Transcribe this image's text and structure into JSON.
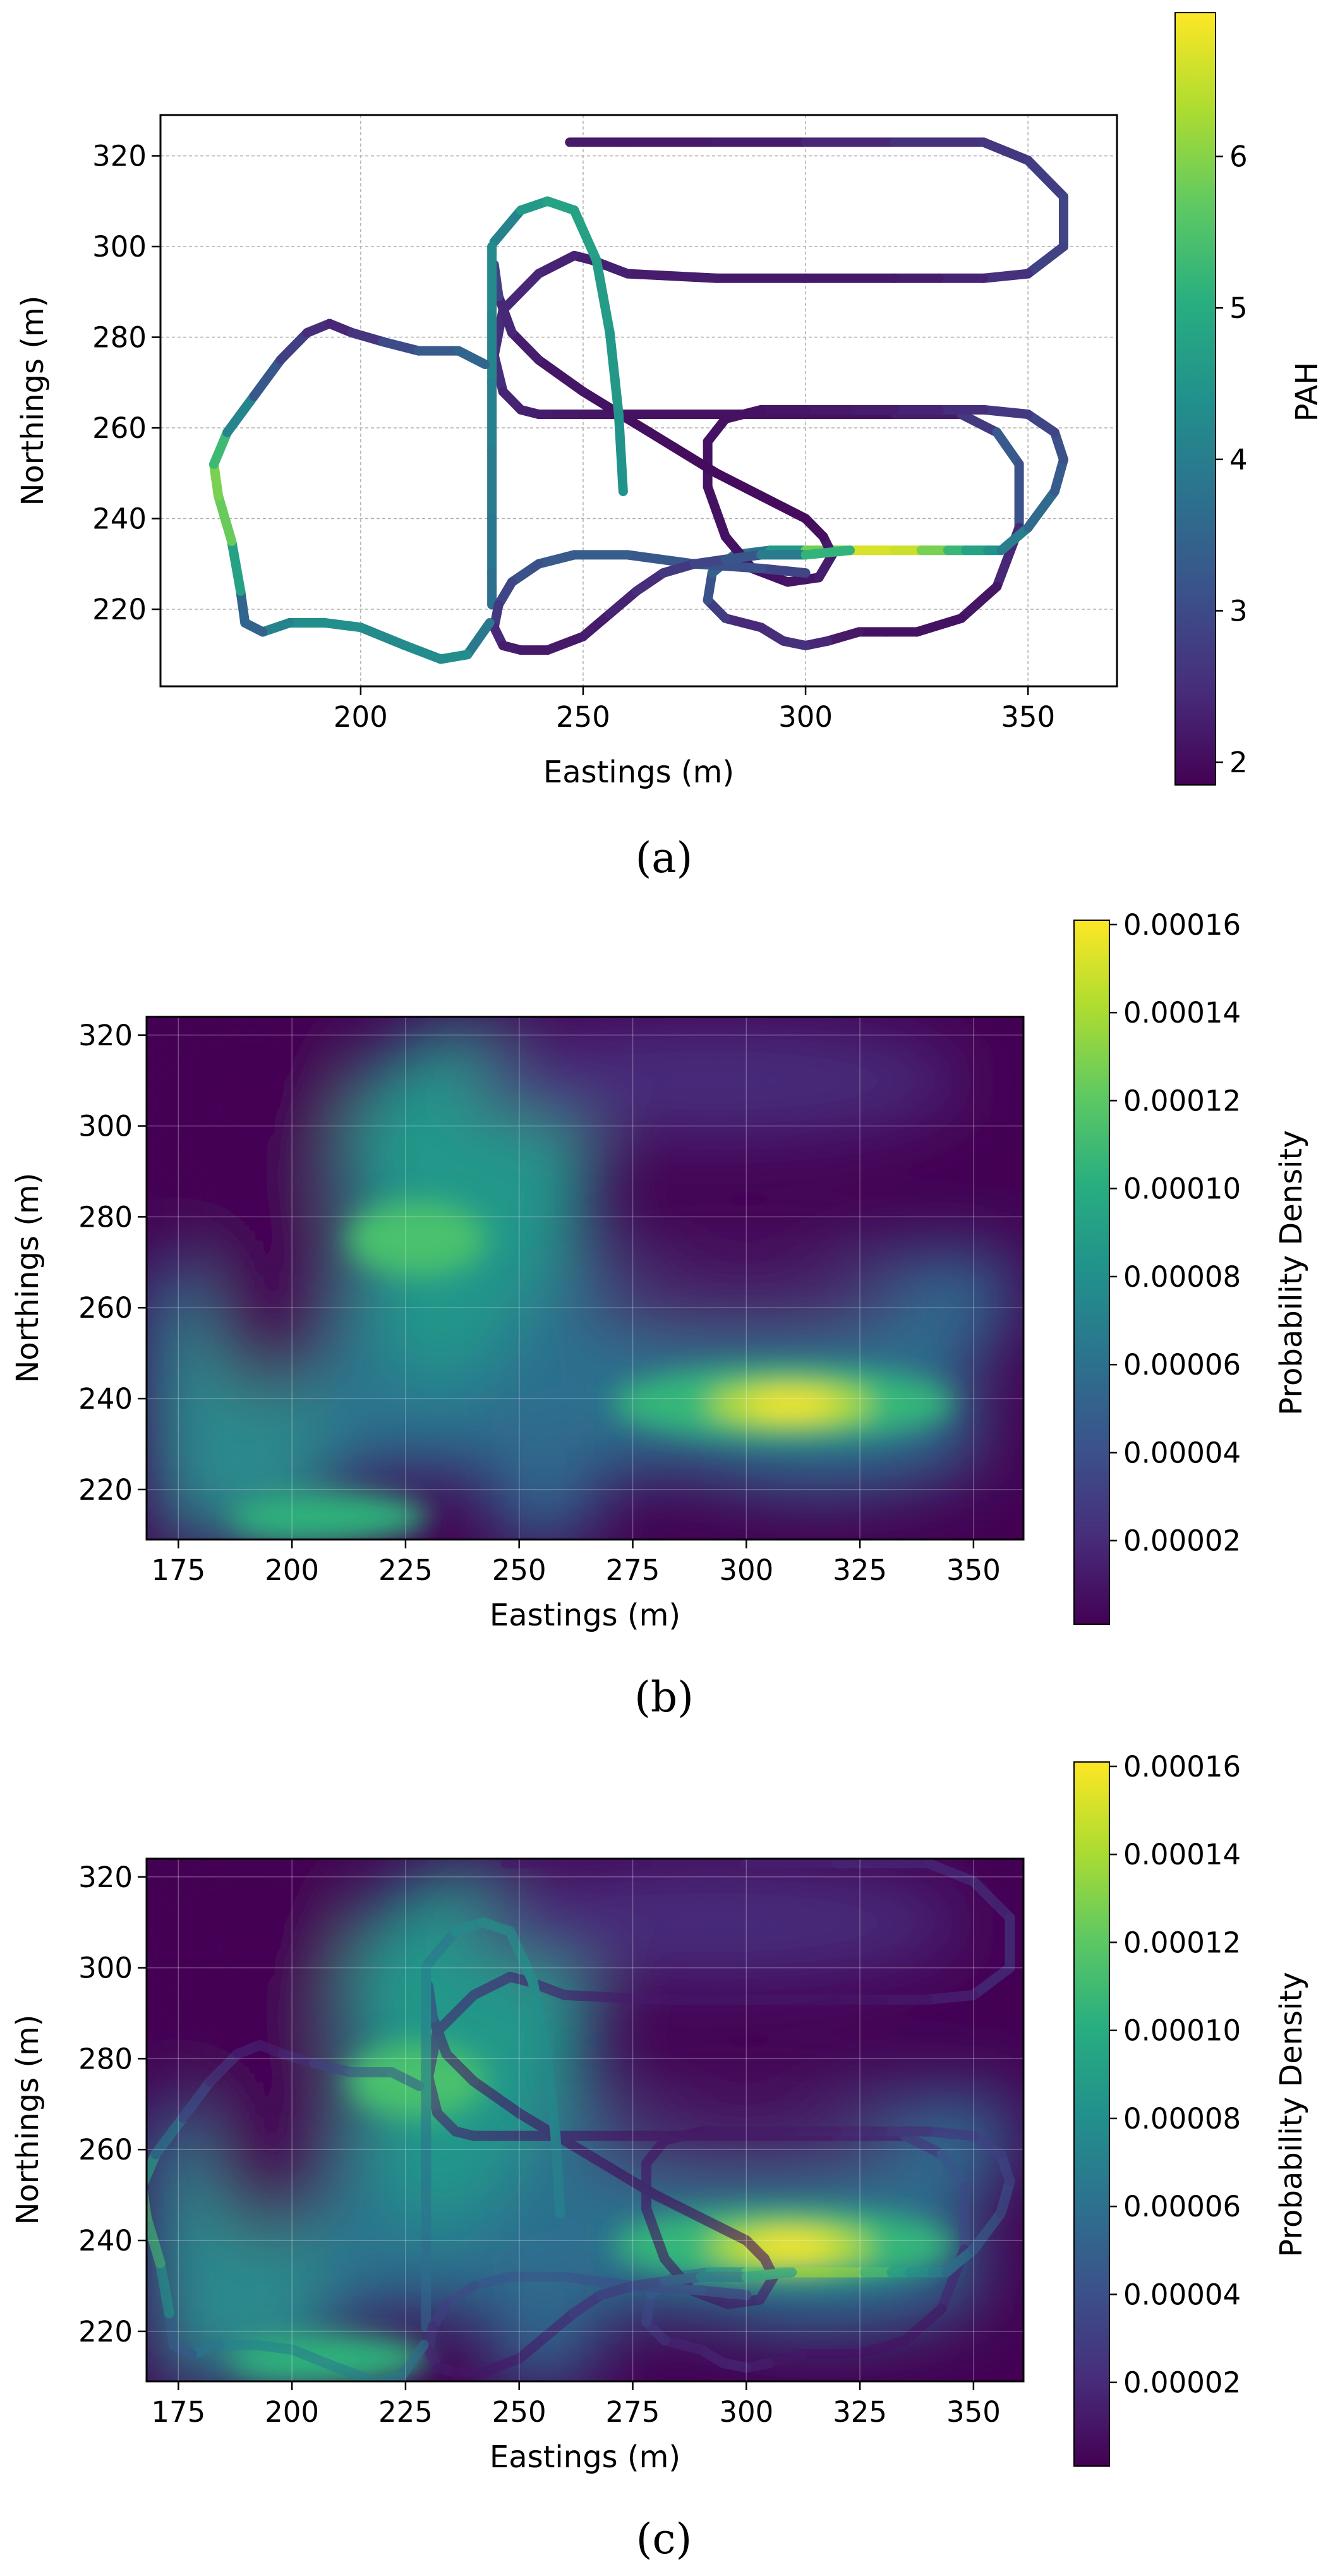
{
  "panels": [
    {
      "id": "a",
      "caption": "(a)"
    },
    {
      "id": "b",
      "caption": "(b)"
    },
    {
      "id": "c",
      "caption": "(c)"
    }
  ],
  "chart_data": [
    {
      "type": "scatter",
      "panel": "(a)",
      "title": "",
      "xlabel": "Eastings (m)",
      "ylabel": "Northings (m)",
      "xlim": [
        155,
        370
      ],
      "ylim": [
        203,
        329
      ],
      "xticks": [
        200,
        250,
        300,
        350
      ],
      "yticks": [
        220,
        240,
        260,
        280,
        300,
        320
      ],
      "grid": true,
      "colorbar": {
        "label": "PAH",
        "colormap": "viridis",
        "range": [
          1.85,
          6.95
        ],
        "ticks": [
          2,
          3,
          4,
          5,
          6
        ],
        "tick_labels": [
          "2",
          "3",
          "4",
          "5",
          "6"
        ]
      },
      "series": [
        {
          "name": "",
          "segments": [
            {
              "x": [
                247,
                260,
                280,
                300,
                320,
                340,
                350,
                358,
                358,
                350,
                340,
                330,
                320,
                300,
                280,
                260,
                252,
                248,
                240,
                232,
                230,
                232,
                236,
                240,
                244,
                250,
                260,
                280,
                300,
                320,
                335,
                343,
                348,
                348,
                343,
                335,
                325,
                318,
                312,
                305,
                300,
                295,
                290
              ],
              "y": [
                323,
                323,
                323,
                323,
                323,
                323,
                319,
                311,
                300,
                294,
                293,
                293,
                293,
                293,
                293,
                294,
                297,
                298,
                294,
                286,
                276,
                268,
                264,
                263,
                263,
                263,
                263,
                263,
                263,
                263,
                263,
                259,
                252,
                238,
                225,
                218,
                215,
                215,
                215,
                213,
                212,
                213,
                216
              ],
              "v": [
                2.2,
                2.2,
                2.2,
                2.3,
                2.5,
                2.6,
                2.7,
                2.8,
                3.0,
                2.7,
                2.4,
                2.3,
                2.2,
                2.2,
                2.2,
                2.3,
                2.3,
                2.3,
                2.4,
                2.4,
                2.6,
                2.4,
                2.3,
                2.3,
                2.2,
                2.2,
                2.1,
                2.1,
                2.1,
                2.1,
                2.4,
                3.0,
                3.6,
                2.6,
                2.2,
                2.1,
                2.1,
                2.1,
                2.1,
                2.3,
                2.5,
                2.6,
                2.4
              ]
            },
            {
              "x": [
                290,
                282,
                278,
                279,
                284,
                292,
                300,
                310,
                320,
                326,
                332,
                336,
                341,
                344
              ],
              "y": [
                216,
                218,
                222,
                228,
                232,
                233,
                233,
                233,
                233,
                233,
                233,
                233,
                233,
                233
              ],
              "v": [
                2.3,
                2.6,
                2.9,
                3.3,
                3.6,
                4.0,
                5.2,
                6.5,
                6.8,
                6.3,
                5.5,
                5.0,
                4.6,
                4.3
              ]
            },
            {
              "x": [
                344,
                350,
                356,
                358,
                356,
                350,
                340,
                330,
                320,
                310,
                300,
                290,
                282,
                278,
                278,
                282,
                288,
                296,
                303,
                306,
                304,
                300,
                290,
                280,
                270,
                260,
                250,
                240,
                234,
                231,
                230
              ],
              "y": [
                233,
                238,
                246,
                253,
                259,
                263,
                264,
                264,
                264,
                264,
                264,
                264,
                262,
                257,
                247,
                236,
                229,
                226,
                227,
                232,
                236,
                240,
                245,
                250,
                256,
                262,
                268,
                275,
                281,
                289,
                296
              ],
              "v": [
                4.2,
                3.8,
                3.4,
                3.2,
                3.0,
                2.8,
                2.6,
                2.4,
                2.3,
                2.2,
                2.2,
                2.1,
                2.1,
                2.1,
                2.1,
                2.1,
                2.1,
                2.1,
                2.2,
                2.3,
                2.1,
                2.0,
                2.0,
                2.0,
                2.0,
                2.1,
                2.1,
                2.2,
                2.3,
                2.5,
                3.2
              ]
            },
            {
              "x": [
                230,
                236,
                242,
                248,
                253,
                256,
                258,
                259
              ],
              "y": [
                301,
                308,
                310,
                308,
                297,
                281,
                263,
                246
              ],
              "v": [
                3.8,
                4.4,
                4.8,
                4.8,
                4.7,
                4.6,
                4.5,
                4.4
              ]
            },
            {
              "x": [
                229.5,
                229.5,
                229.5,
                229.5,
                229.5,
                229.5,
                229.5
              ],
              "y": [
                300,
                285,
                270,
                255,
                240,
                228,
                221
              ],
              "v": [
                4.3,
                4.2,
                4.1,
                4.0,
                3.9,
                3.8,
                3.6
              ]
            },
            {
              "x": [
                300,
                290,
                275,
                260,
                248,
                240,
                234,
                231,
                230,
                232,
                236,
                242,
                250,
                256,
                262,
                268,
                275,
                282,
                290,
                300,
                310
              ],
              "y": [
                228,
                229,
                230,
                232,
                232,
                230,
                226,
                221,
                216,
                212,
                211,
                211,
                214,
                219,
                224,
                228,
                230,
                231,
                232,
                232,
                233
              ],
              "v": [
                2.8,
                3.0,
                3.2,
                3.3,
                3.4,
                3.2,
                3.0,
                2.8,
                2.6,
                2.3,
                2.2,
                2.2,
                2.2,
                2.3,
                2.4,
                2.6,
                2.8,
                3.0,
                3.4,
                4.5,
                5.8
              ]
            },
            {
              "x": [
                229,
                224,
                218,
                210,
                200,
                192,
                184,
                178,
                174,
                173,
                171,
                168,
                167,
                170,
                176,
                182,
                188,
                193,
                198,
                205,
                213,
                222,
                228
              ],
              "y": [
                217,
                210,
                209,
                212,
                216,
                217,
                217,
                215,
                217,
                224,
                235,
                245,
                252,
                259,
                267,
                275,
                281,
                283,
                281,
                279,
                277,
                277,
                274
              ],
              "v": [
                3.6,
                4.2,
                4.4,
                4.2,
                4.3,
                4.4,
                4.3,
                3.9,
                3.0,
                4.0,
                5.5,
                6.0,
                5.8,
                4.8,
                3.5,
                3.0,
                2.6,
                2.4,
                2.4,
                2.8,
                3.2,
                3.4,
                3.6
              ]
            }
          ]
        }
      ]
    },
    {
      "type": "heatmap",
      "panel": "(b)",
      "title": "",
      "xlabel": "Eastings (m)",
      "ylabel": "Northings (m)",
      "xlim": [
        168,
        361
      ],
      "ylim": [
        209,
        324
      ],
      "xticks": [
        175,
        200,
        225,
        250,
        275,
        300,
        325,
        350
      ],
      "yticks": [
        220,
        240,
        260,
        280,
        300,
        320
      ],
      "grid": true,
      "colorbar": {
        "label": "Probability Density",
        "colormap": "viridis",
        "range": [
          1e-06,
          0.000161
        ],
        "ticks": [
          2e-05,
          4e-05,
          6e-05,
          8e-05,
          0.0001,
          0.00012,
          0.00014,
          0.00016
        ],
        "tick_labels": [
          "0.00002",
          "0.00004",
          "0.00006",
          "0.00008",
          "0.00010",
          "0.00012",
          "0.00014",
          "0.00016"
        ]
      },
      "density_peaks": [
        {
          "x": 313,
          "y": 232.5,
          "value": 0.000158
        },
        {
          "x": 233,
          "y": 275,
          "value": 0.000112
        }
      ]
    },
    {
      "type": "heatmap",
      "panel": "(c)",
      "title": "",
      "xlabel": "Eastings (m)",
      "ylabel": "Northings (m)",
      "xlim": [
        168,
        361
      ],
      "ylim": [
        209,
        324
      ],
      "xticks": [
        175,
        200,
        225,
        250,
        275,
        300,
        325,
        350
      ],
      "yticks": [
        220,
        240,
        260,
        280,
        300,
        320
      ],
      "grid": true,
      "overlay": "PAH survey track from panel (a)",
      "colorbar": {
        "label": "Probability Density",
        "colormap": "viridis",
        "range": [
          1e-06,
          0.000161
        ],
        "ticks": [
          2e-05,
          4e-05,
          6e-05,
          8e-05,
          0.0001,
          0.00012,
          0.00014,
          0.00016
        ],
        "tick_labels": [
          "0.00002",
          "0.00004",
          "0.00006",
          "0.00008",
          "0.00010",
          "0.00012",
          "0.00014",
          "0.00016"
        ]
      }
    }
  ]
}
